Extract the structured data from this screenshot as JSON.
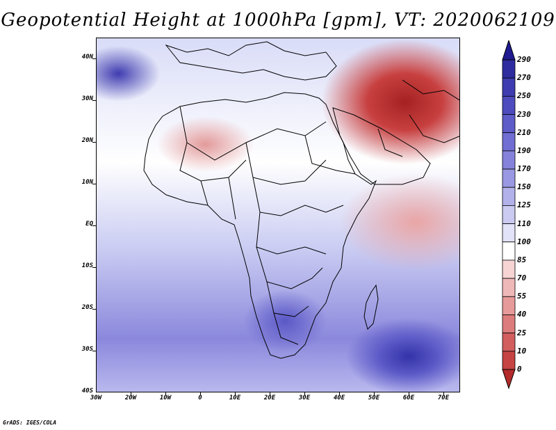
{
  "title": "Geopotential Height at 1000hPa [gpm], VT: 2020062109",
  "footer": "GrADS: IGES/COLA",
  "lat_labels": [
    "40N",
    "30N",
    "20N",
    "10N",
    "EQ",
    "10S",
    "20S",
    "30S",
    "40S"
  ],
  "lon_labels": [
    "30W",
    "20W",
    "10W",
    "0",
    "10E",
    "20E",
    "30E",
    "40E",
    "50E",
    "60E",
    "70E"
  ],
  "colorbar": {
    "labels": [
      "290",
      "270",
      "250",
      "230",
      "210",
      "190",
      "170",
      "150",
      "125",
      "110",
      "100",
      "85",
      "70",
      "55",
      "40",
      "25",
      "10",
      "0"
    ],
    "colors": [
      "#1f1a8f",
      "#2f2ca0",
      "#3e3cb0",
      "#4d4bbd",
      "#5e5cc8",
      "#706ed2",
      "#8482da",
      "#9a98e2",
      "#b2b1ea",
      "#cbcaf1",
      "#e2e2f8",
      "#ffffff",
      "#f7d4d4",
      "#efb8b8",
      "#e69a9a",
      "#dc7c7c",
      "#d25e5e",
      "#c64444",
      "#b42b2b"
    ]
  },
  "map_region": "Africa",
  "field": "Geopotential Height"
}
